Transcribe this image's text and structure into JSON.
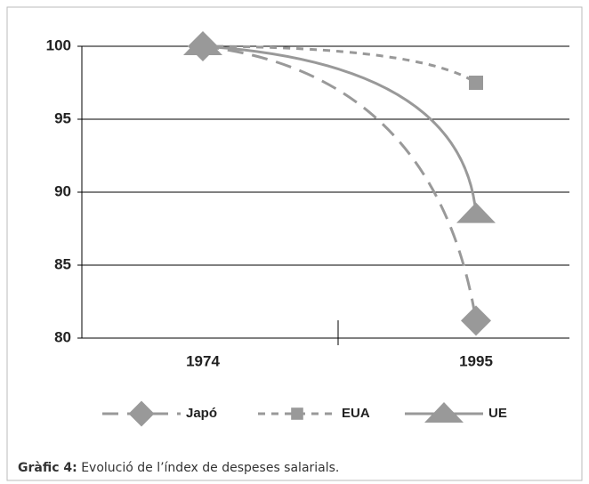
{
  "chart_data": {
    "type": "line",
    "categories": [
      "1974",
      "1995"
    ],
    "series": [
      {
        "name": "Japó",
        "color": "#999999",
        "values": [
          100,
          81.2
        ]
      },
      {
        "name": "EUA",
        "color": "#999999",
        "values": [
          100,
          97.5
        ]
      },
      {
        "name": "UE",
        "color": "#999999",
        "values": [
          100,
          88.5
        ]
      }
    ],
    "ylim": [
      80,
      100
    ],
    "yticks": [
      80,
      85,
      90,
      95,
      100
    ],
    "grid": true,
    "legend": "bottom"
  },
  "caption": {
    "label": "Gràfic 4:",
    "text": "Evolució de l’índex de despeses salarials."
  }
}
